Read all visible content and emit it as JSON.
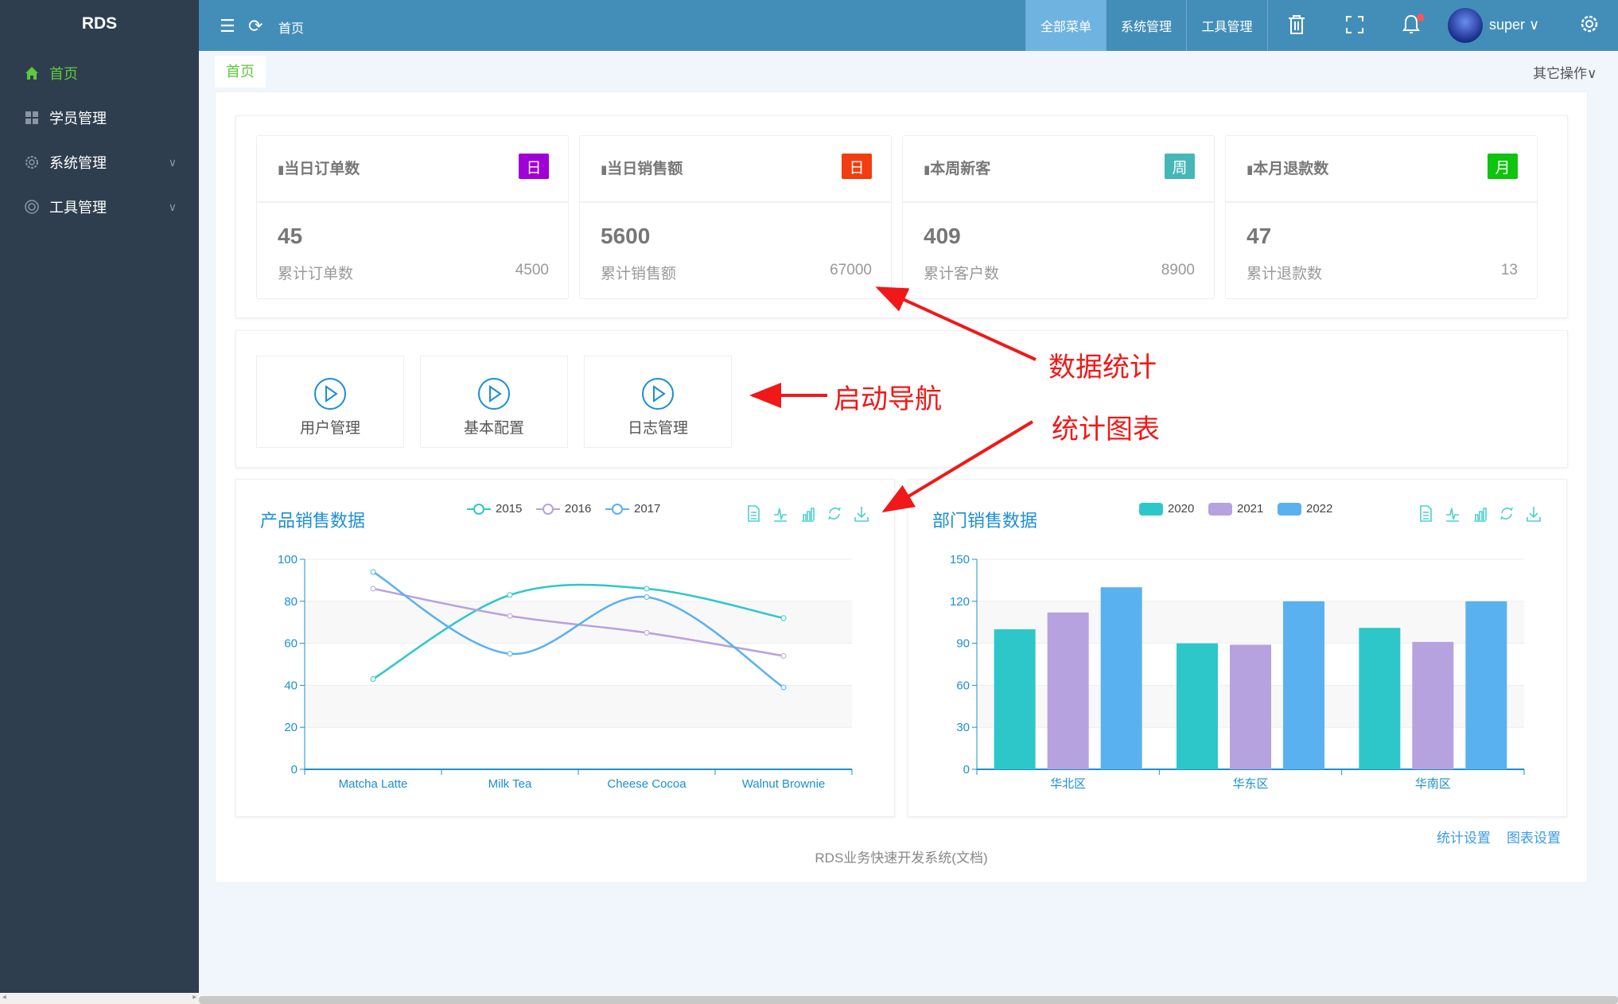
{
  "sidebar": {
    "logo": "RDS",
    "items": [
      {
        "label": "首页",
        "icon": "home-icon",
        "active": true
      },
      {
        "label": "学员管理",
        "icon": "grid-icon"
      },
      {
        "label": "系统管理",
        "icon": "gear-icon",
        "expandable": true
      },
      {
        "label": "工具管理",
        "icon": "lifebuoy-icon",
        "expandable": true
      }
    ]
  },
  "topbar": {
    "breadcrumb": "首页",
    "nav": [
      "全部菜单",
      "系统管理",
      "工具管理"
    ],
    "user": "super",
    "notification_dot": true
  },
  "tabs": {
    "active": "首页",
    "other_ops": "其它操作"
  },
  "stats": [
    {
      "title": "当日订单数",
      "badge": "日",
      "badge_color": "#a000d8",
      "value": "45",
      "sub_label": "累计订单数",
      "sub_value": "4500"
    },
    {
      "title": "当日销售额",
      "badge": "日",
      "badge_color": "#f23d10",
      "value": "5600",
      "sub_label": "累计销售额",
      "sub_value": "67000"
    },
    {
      "title": "本周新客",
      "badge": "周",
      "badge_color": "#46b6b8",
      "value": "409",
      "sub_label": "累计客户数",
      "sub_value": "8900"
    },
    {
      "title": "本月退款数",
      "badge": "月",
      "badge_color": "#0ec40e",
      "value": "47",
      "sub_label": "累计退款数",
      "sub_value": "13"
    }
  ],
  "quick_nav": [
    "用户管理",
    "基本配置",
    "日志管理"
  ],
  "annotations": [
    "数据统计",
    "启动导航",
    "统计图表"
  ],
  "chart_data": [
    {
      "type": "line",
      "title": "产品销售数据",
      "categories": [
        "Matcha Latte",
        "Milk Tea",
        "Cheese Cocoa",
        "Walnut Brownie"
      ],
      "ylim": [
        0,
        100
      ],
      "yticks": [
        0,
        20,
        40,
        60,
        80,
        100
      ],
      "legend": "top",
      "series": [
        {
          "name": "2015",
          "color": "#2ec7c9",
          "values": [
            43,
            83,
            86,
            72
          ]
        },
        {
          "name": "2016",
          "color": "#b6a2de",
          "values": [
            86,
            73,
            65,
            54
          ]
        },
        {
          "name": "2017",
          "color": "#5ab1ef",
          "values": [
            94,
            55,
            82,
            39
          ]
        }
      ]
    },
    {
      "type": "bar",
      "title": "部门销售数据",
      "categories": [
        "华北区",
        "华东区",
        "华南区"
      ],
      "ylim": [
        0,
        150
      ],
      "yticks": [
        0,
        30,
        60,
        90,
        120,
        150
      ],
      "legend": "top",
      "series": [
        {
          "name": "2020",
          "color": "#2ec7c9",
          "values": [
            100,
            90,
            101
          ]
        },
        {
          "name": "2021",
          "color": "#b6a2de",
          "values": [
            112,
            89,
            91
          ]
        },
        {
          "name": "2022",
          "color": "#5ab1ef",
          "values": [
            130,
            120,
            120
          ]
        }
      ]
    }
  ],
  "footer": {
    "links": [
      "统计设置",
      "图表设置"
    ],
    "text": "RDS业务快速开发系统(文档)"
  }
}
